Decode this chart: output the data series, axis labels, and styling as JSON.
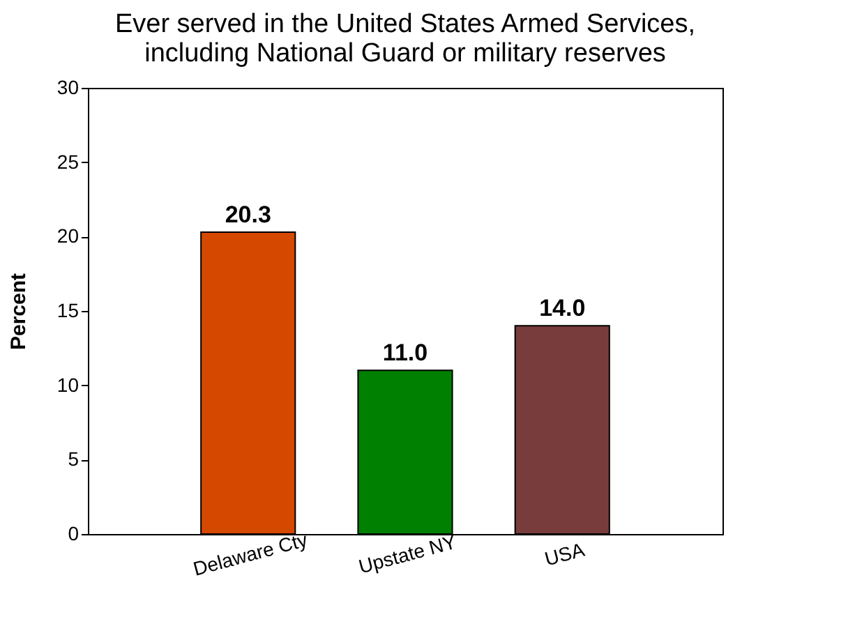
{
  "chart_data": {
    "type": "bar",
    "title": [
      "Ever served in the United States Armed Services,",
      "including National Guard or military reserves"
    ],
    "ylabel": "Percent",
    "categories": [
      "Delaware Cty",
      "Upstate NY",
      "USA"
    ],
    "values": [
      20.3,
      11.0,
      14.0
    ],
    "value_labels": [
      "20.3",
      "11.0",
      "14.0"
    ],
    "colors": [
      "#d54800",
      "#008000",
      "#783c3c"
    ],
    "ylim": [
      0,
      30
    ],
    "yticks": [
      0,
      5,
      10,
      15,
      20,
      25,
      30
    ],
    "grid": false
  }
}
